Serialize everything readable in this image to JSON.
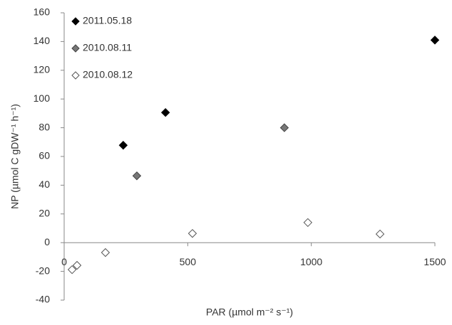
{
  "chart_data": {
    "type": "scatter",
    "x_label": "PAR (µmol m⁻² s⁻¹)",
    "y_label": "NP (µmol C gDW⁻¹ h⁻¹)",
    "xlim": [
      0,
      1500
    ],
    "xticks": [
      0,
      500,
      1000,
      1500
    ],
    "ylim": [
      -40,
      160
    ],
    "yticks": [
      -40,
      -20,
      0,
      20,
      40,
      60,
      80,
      100,
      120,
      140,
      160
    ],
    "grid": false,
    "legend": "upper left",
    "series": [
      {
        "name": "2011.05.18",
        "color": "#000000",
        "edgecolor": "#000000",
        "x": [
          239,
          410,
          1500
        ],
        "values": [
          67.8,
          90.6,
          141
        ]
      },
      {
        "name": "2010.08.11",
        "color": "#777777",
        "edgecolor": "#444444",
        "x": [
          294,
          891
        ],
        "values": [
          46.5,
          80
        ]
      },
      {
        "name": "2010.08.12",
        "color": "#ffffff",
        "edgecolor": "#555555",
        "x": [
          32,
          52,
          167,
          519,
          986,
          1278
        ],
        "values": [
          -18.8,
          -15.8,
          -6.9,
          6.4,
          14,
          6
        ]
      }
    ]
  }
}
